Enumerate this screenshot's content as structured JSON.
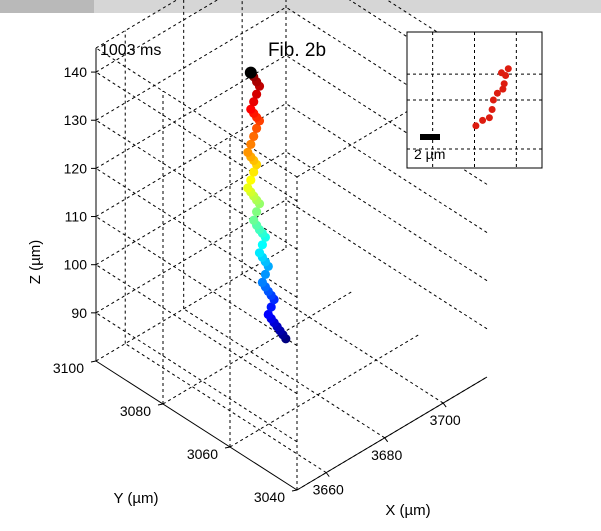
{
  "timestamp": "1003 ms",
  "chart_data": {
    "type": "scatter3d",
    "title": "Fib. 2b",
    "xlabel": "X (µm)",
    "ylabel": "Y (µm)",
    "zlabel": "Z (µm)",
    "xlim": [
      3650,
      3715
    ],
    "ylim": [
      3040,
      3100
    ],
    "zlim": [
      80,
      145
    ],
    "x_ticks": [
      "3660",
      "3680",
      "3700"
    ],
    "y_ticks": [
      "3040",
      "3060",
      "3080",
      "3100"
    ],
    "z_ticks": [
      "90",
      "100",
      "110",
      "120",
      "130",
      "140"
    ],
    "grid": true,
    "colormap": "jet",
    "series": [
      {
        "points": [
          [
            3672,
            3073,
            144.0
          ],
          [
            3673,
            3073,
            142.8
          ],
          [
            3674,
            3073,
            141.4
          ],
          [
            3675,
            3073,
            140.1
          ],
          [
            3674,
            3073,
            138.8
          ],
          [
            3673,
            3073,
            137.6
          ],
          [
            3672,
            3073,
            136.4
          ],
          [
            3673,
            3073,
            135.2
          ],
          [
            3674,
            3073,
            134.0
          ],
          [
            3675,
            3073,
            132.9
          ],
          [
            3674,
            3073,
            131.7
          ],
          [
            3673,
            3073,
            130.4
          ],
          [
            3672,
            3073,
            129.1
          ],
          [
            3671,
            3073,
            127.8
          ],
          [
            3672,
            3073,
            126.5
          ],
          [
            3673,
            3073,
            125.4
          ],
          [
            3674,
            3073,
            124.2
          ],
          [
            3673,
            3073,
            123.0
          ],
          [
            3672,
            3073,
            121.7
          ],
          [
            3671,
            3073,
            120.4
          ],
          [
            3672,
            3073,
            119.2
          ],
          [
            3673,
            3073,
            118.0
          ],
          [
            3674,
            3073,
            116.8
          ],
          [
            3675,
            3073,
            115.7
          ],
          [
            3674,
            3073,
            114.4
          ],
          [
            3673,
            3073,
            113.0
          ],
          [
            3674,
            3073,
            111.6
          ],
          [
            3675,
            3073,
            110.3
          ],
          [
            3676,
            3073,
            109.2
          ],
          [
            3677,
            3073,
            108.0
          ],
          [
            3676,
            3073,
            106.8
          ],
          [
            3675,
            3073,
            105.5
          ],
          [
            3676,
            3073,
            104.2
          ],
          [
            3677,
            3073,
            102.9
          ],
          [
            3678,
            3073,
            101.6
          ],
          [
            3677,
            3073,
            100.3
          ],
          [
            3676,
            3073,
            99.0
          ],
          [
            3677,
            3073,
            97.7
          ],
          [
            3678,
            3073,
            96.4
          ],
          [
            3679,
            3073,
            95.2
          ],
          [
            3680,
            3073,
            94.0
          ],
          [
            3679,
            3073,
            92.8
          ],
          [
            3678,
            3073,
            91.6
          ],
          [
            3679,
            3073,
            90.4
          ],
          [
            3680,
            3073,
            89.2
          ],
          [
            3681,
            3073,
            88.0
          ],
          [
            3682,
            3073,
            86.8
          ],
          [
            3683,
            3073,
            85.6
          ],
          [
            3684,
            3073,
            84.4
          ]
        ],
        "start_marker_color": "#000000"
      }
    ]
  },
  "inset": {
    "scale_label": "2 µm",
    "marker_color": "#dd1c0f",
    "points": [
      [
        0.51,
        0.31
      ],
      [
        0.56,
        0.35
      ],
      [
        0.61,
        0.37
      ],
      [
        0.63,
        0.43
      ],
      [
        0.64,
        0.5
      ],
      [
        0.67,
        0.55
      ],
      [
        0.71,
        0.58
      ],
      [
        0.72,
        0.62
      ],
      [
        0.73,
        0.68
      ],
      [
        0.7,
        0.7
      ],
      [
        0.75,
        0.73
      ]
    ]
  }
}
